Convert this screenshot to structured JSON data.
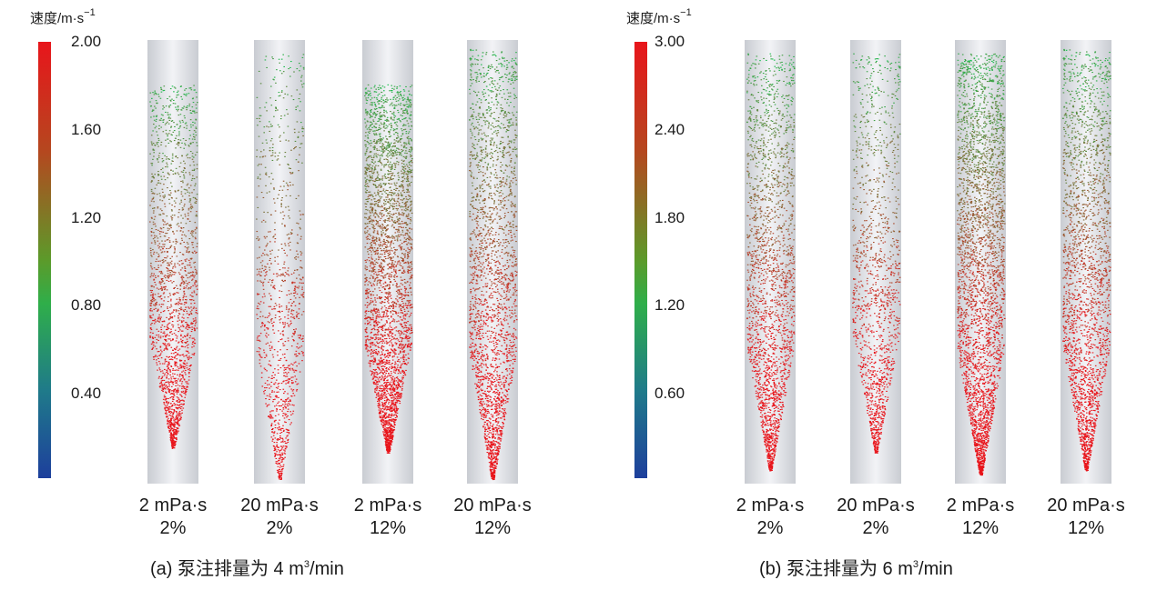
{
  "panels": [
    {
      "id": "a",
      "colorbar": {
        "title": "速度/m·s",
        "title_exp": "−1",
        "ticks": [
          "2.00",
          "1.60",
          "1.20",
          "0.80",
          "0.40"
        ],
        "colors": [
          "#e8151b",
          "#5c9a2a",
          "#2fae4a",
          "#1d3f9c"
        ]
      },
      "columns": [
        {
          "viscosity": "2 mPa·s",
          "concentration": "2%",
          "top": 0.1,
          "bottom": 0.92,
          "dense": 0.55
        },
        {
          "viscosity": "20 mPa·s",
          "concentration": "2%",
          "top": 0.03,
          "bottom": 0.99,
          "dense": 0.2
        },
        {
          "viscosity": "2 mPa·s",
          "concentration": "12%",
          "top": 0.1,
          "bottom": 0.93,
          "dense": 1.0
        },
        {
          "viscosity": "20 mPa·s",
          "concentration": "12%",
          "top": 0.02,
          "bottom": 0.99,
          "dense": 0.75
        }
      ],
      "caption_prefix": "(a) 泵注排量为 4 m",
      "caption_sup": "3",
      "caption_suffix": "/min"
    },
    {
      "id": "b",
      "colorbar": {
        "title": "速度/m·s",
        "title_exp": "−1",
        "ticks": [
          "3.00",
          "2.40",
          "1.80",
          "1.20",
          "0.60"
        ],
        "colors": [
          "#e8151b",
          "#5c9a2a",
          "#2fae4a",
          "#1d3f9c"
        ]
      },
      "columns": [
        {
          "viscosity": "2 mPa·s",
          "concentration": "2%",
          "top": 0.03,
          "bottom": 0.97,
          "dense": 0.65
        },
        {
          "viscosity": "20 mPa·s",
          "concentration": "2%",
          "top": 0.03,
          "bottom": 0.93,
          "dense": 0.35
        },
        {
          "viscosity": "2 mPa·s",
          "concentration": "12%",
          "top": 0.03,
          "bottom": 0.98,
          "dense": 1.0
        },
        {
          "viscosity": "20 mPa·s",
          "concentration": "12%",
          "top": 0.02,
          "bottom": 0.97,
          "dense": 0.75
        }
      ],
      "caption_prefix": "(b) 泵注排量为 6 m",
      "caption_sup": "3",
      "caption_suffix": "/min"
    }
  ]
}
